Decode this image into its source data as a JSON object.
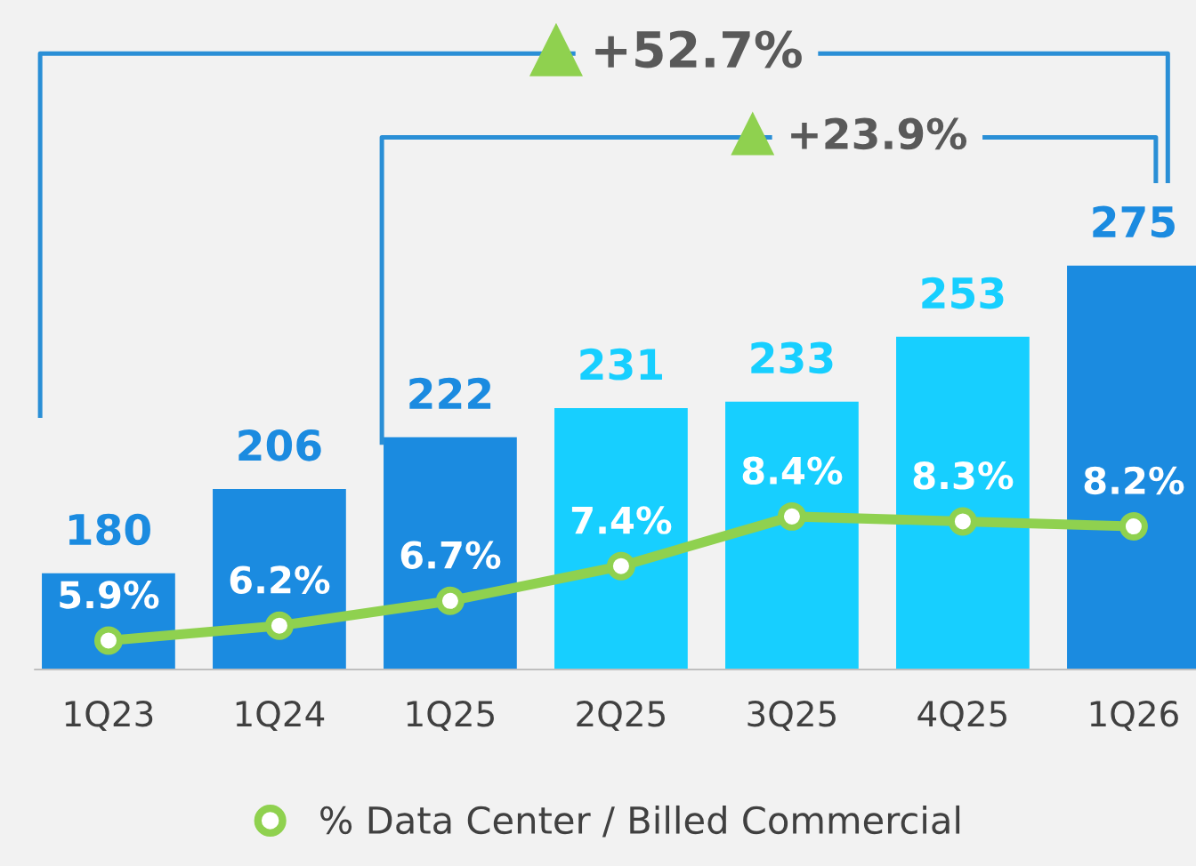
{
  "chart_data": {
    "type": "bar",
    "categories": [
      "1Q23",
      "1Q24",
      "1Q25",
      "2Q25",
      "3Q25",
      "4Q25",
      "1Q26"
    ],
    "ylim": [
      150,
      357
    ],
    "tick_labels": "x",
    "data_labels": true,
    "grid": false,
    "legend": "bottom",
    "marker": "circle",
    "series": [
      {
        "values": [
          180,
          206,
          222,
          231,
          233,
          253,
          275
        ],
        "colors": [
          "#1b8be0",
          "#1b8be0",
          "#1b8be0",
          "#17cfff",
          "#17cfff",
          "#17cfff",
          "#1b8be0"
        ]
      },
      {
        "type": "line",
        "axis": "y2",
        "name": "% Data Center / Billed Commercial",
        "color": "#8fd14f",
        "values": [
          5.9,
          6.2,
          6.7,
          7.4,
          8.4,
          8.3,
          8.2
        ],
        "value_labels": [
          "5.9%",
          "6.2%",
          "6.7%",
          "7.4%",
          "8.4%",
          "8.3%",
          "8.2%"
        ]
      }
    ],
    "y2lim": [
      5.3,
      18.8
    ],
    "annotations": [
      "+52.7%",
      "+23.9%"
    ]
  }
}
